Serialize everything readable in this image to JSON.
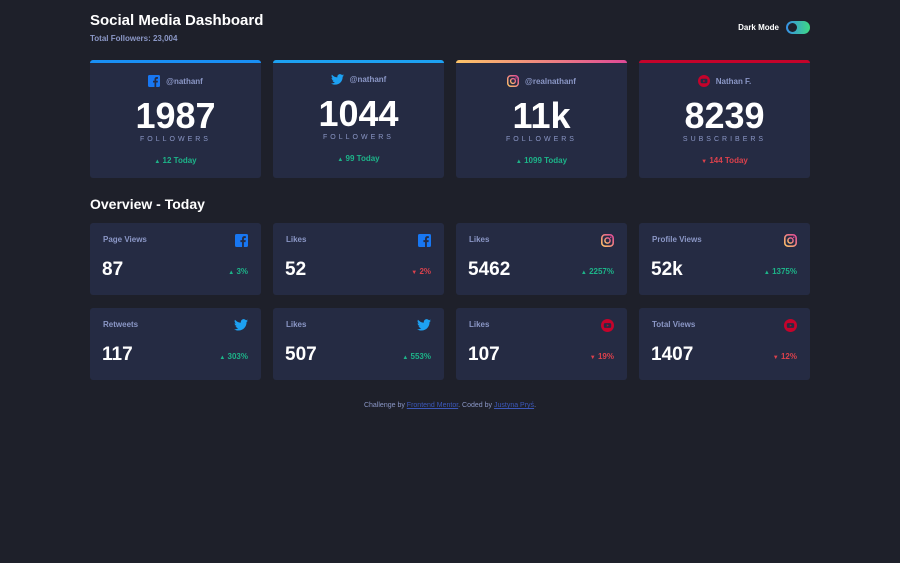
{
  "header": {
    "title": "Social Media Dashboard",
    "subtitle": "Total Followers: 23,004",
    "toggle_label": "Dark Mode"
  },
  "colors": {
    "facebook": "#1877f2",
    "twitter": "#1da1f2",
    "instagram_start": "#fdc468",
    "instagram_end": "#df4996",
    "youtube": "#c4032b",
    "up": "#1db489",
    "down": "#dc414c"
  },
  "cards": [
    {
      "platform": "facebook",
      "icon": "facebook-icon",
      "handle": "@nathanf",
      "count": "1987",
      "label": "FOLLOWERS",
      "today": "12 Today",
      "trend": "up"
    },
    {
      "platform": "twitter",
      "icon": "twitter-icon",
      "handle": "@nathanf",
      "count": "1044",
      "label": "FOLLOWERS",
      "today": "99 Today",
      "trend": "up"
    },
    {
      "platform": "instagram",
      "icon": "instagram-icon",
      "handle": "@realnathanf",
      "count": "11k",
      "label": "FOLLOWERS",
      "today": "1099 Today",
      "trend": "up"
    },
    {
      "platform": "youtube",
      "icon": "youtube-icon",
      "handle": "Nathan F.",
      "count": "8239",
      "label": "SUBSCRIBERS",
      "today": "144 Today",
      "trend": "down"
    }
  ],
  "overview": {
    "title": "Overview - Today",
    "items": [
      {
        "label": "Page Views",
        "icon": "facebook-icon",
        "value": "87",
        "pct": "3%",
        "trend": "up"
      },
      {
        "label": "Likes",
        "icon": "facebook-icon",
        "value": "52",
        "pct": "2%",
        "trend": "down"
      },
      {
        "label": "Likes",
        "icon": "instagram-icon",
        "value": "5462",
        "pct": "2257%",
        "trend": "up"
      },
      {
        "label": "Profile Views",
        "icon": "instagram-icon",
        "value": "52k",
        "pct": "1375%",
        "trend": "up"
      },
      {
        "label": "Retweets",
        "icon": "twitter-icon",
        "value": "117",
        "pct": "303%",
        "trend": "up"
      },
      {
        "label": "Likes",
        "icon": "twitter-icon",
        "value": "507",
        "pct": "553%",
        "trend": "up"
      },
      {
        "label": "Likes",
        "icon": "youtube-icon",
        "value": "107",
        "pct": "19%",
        "trend": "down"
      },
      {
        "label": "Total Views",
        "icon": "youtube-icon",
        "value": "1407",
        "pct": "12%",
        "trend": "down"
      }
    ]
  },
  "footer": {
    "prefix": "Challenge by",
    "link1": "Frontend Mentor",
    "middle": ". Coded by",
    "link2": "Justyna Pryś",
    "suffix": "."
  }
}
